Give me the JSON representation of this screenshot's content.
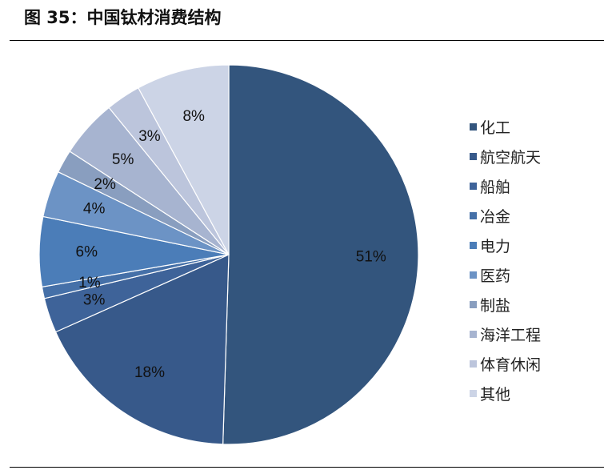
{
  "figure": {
    "title": "图 35：中国钛材消费结构"
  },
  "chart_data": {
    "type": "pie",
    "title": "",
    "legend_position": "right",
    "labels": [
      "化工",
      "航空航天",
      "船舶",
      "冶金",
      "电力",
      "医药",
      "制盐",
      "海洋工程",
      "体育休闲",
      "其他"
    ],
    "values": [
      51,
      18,
      3,
      1,
      6,
      4,
      2,
      5,
      3,
      8
    ],
    "value_labels": [
      "51%",
      "18%",
      "3%",
      "1%",
      "6%",
      "4%",
      "2%",
      "5%",
      "3%",
      "8%"
    ],
    "colors": [
      "#33557d",
      "#37598a",
      "#3e6399",
      "#4570a8",
      "#4b7db8",
      "#6c93c5",
      "#899ebf",
      "#a7b4d0",
      "#bcc5dc",
      "#ccd4e6"
    ]
  }
}
